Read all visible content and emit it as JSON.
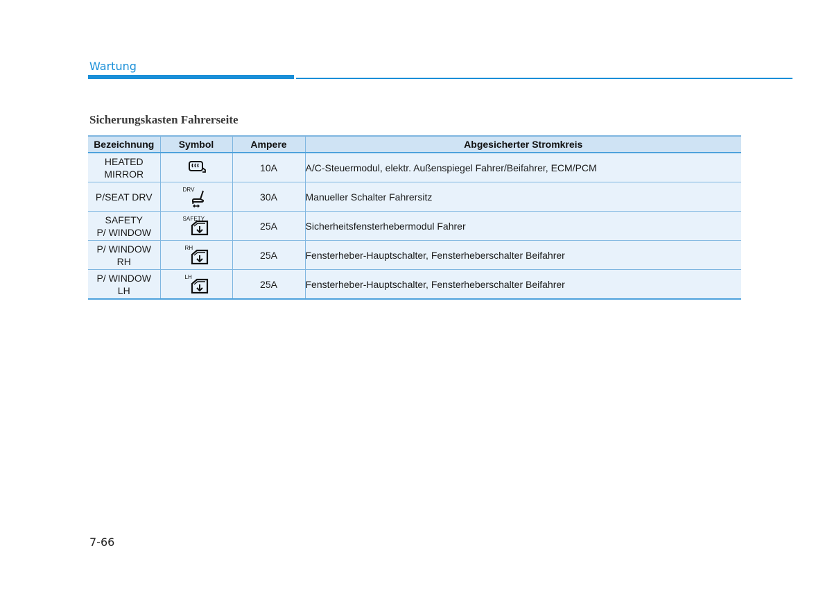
{
  "header": {
    "section": "Wartung"
  },
  "heading": "Sicherungskasten Fahrerseite",
  "table": {
    "columns": [
      "Bezeichnung",
      "Symbol",
      "Ampere",
      "Abgesicherter Stromkreis"
    ],
    "rows": [
      {
        "name": [
          "HEATED",
          "MIRROR"
        ],
        "symbol_label": "",
        "symbol_icon": "heated-mirror-icon",
        "ampere": "10A",
        "circuit": "A/C-Steuermodul, elektr. Außenspiegel Fahrer/Beifahrer, ECM/PCM"
      },
      {
        "name": [
          "P/SEAT DRV"
        ],
        "symbol_label": "DRV",
        "symbol_icon": "power-seat-icon",
        "ampere": "30A",
        "circuit": "Manueller Schalter Fahrersitz"
      },
      {
        "name": [
          "SAFETY",
          "P/ WINDOW"
        ],
        "symbol_label": "SAFETY",
        "symbol_icon": "power-window-icon",
        "ampere": "25A",
        "circuit": "Sicherheitsfensterhebermodul Fahrer"
      },
      {
        "name": [
          "P/ WINDOW",
          "RH"
        ],
        "symbol_label": "RH",
        "symbol_icon": "power-window-icon",
        "ampere": "25A",
        "circuit": "Fensterheber-Hauptschalter, Fensterheberschalter Beifahrer"
      },
      {
        "name": [
          "P/ WINDOW",
          "LH"
        ],
        "symbol_label": "LH",
        "symbol_icon": "power-window-icon",
        "ampere": "25A",
        "circuit": "Fensterheber-Hauptschalter, Fensterheberschalter Beifahrer"
      }
    ]
  },
  "footer": {
    "page_number": "7-66"
  },
  "colors": {
    "accent": "#1a8fd8",
    "header_bg": "#cfe3f4",
    "row_bg": "#e8f2fb"
  }
}
